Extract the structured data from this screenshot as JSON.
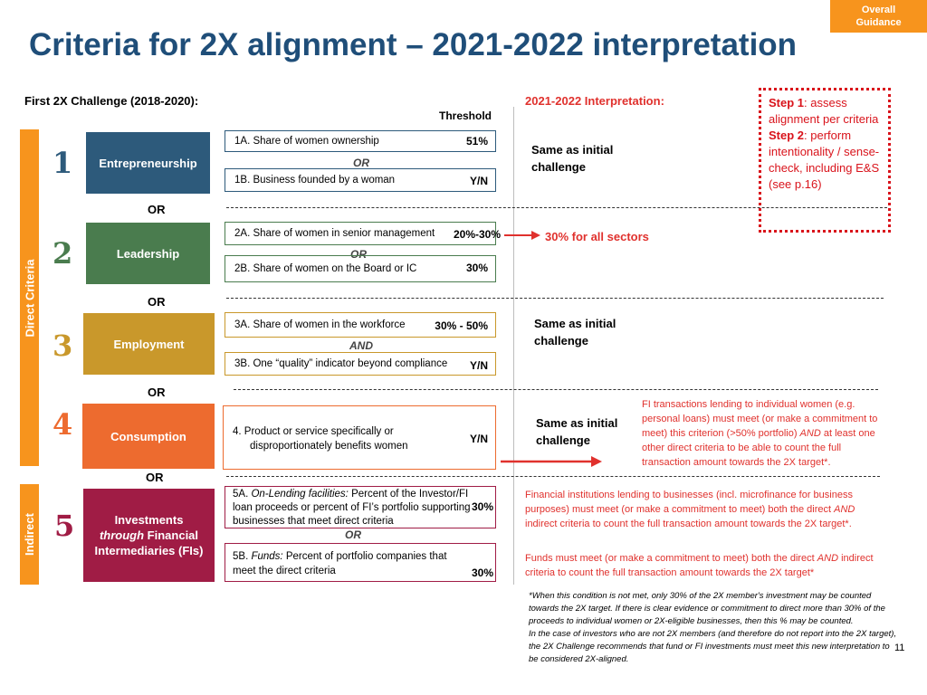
{
  "tag": {
    "line1": "Overall",
    "line2": "Guidance"
  },
  "title": "Criteria for 2X alignment – 2021-2022 interpretation",
  "headers": {
    "left": "First 2X Challenge (2018-2020):",
    "threshold": "Threshold",
    "right": "2021-2022 Interpretation:"
  },
  "sidebar": {
    "direct": "Direct Criteria",
    "indirect": "Indirect"
  },
  "rows": [
    {
      "num": "1",
      "category": "Entrepreneurship",
      "a": {
        "label": "1A. Share of women ownership",
        "value": "51%"
      },
      "join": "OR",
      "b": {
        "label": "1B. Business founded by a woman",
        "value": "Y/N"
      }
    },
    {
      "num": "2",
      "category": "Leadership",
      "a": {
        "label": "2A. Share of women in senior management",
        "value": "20%-30%"
      },
      "join": "OR",
      "b": {
        "label": "2B. Share of women on the Board or IC",
        "value": "30%"
      }
    },
    {
      "num": "3",
      "category": "Employment",
      "a": {
        "label": "3A. Share of women in the  workforce",
        "value": "30% - 50%"
      },
      "join": "AND",
      "b": {
        "label": "3B. One “quality” indicator beyond compliance",
        "value": "Y/N"
      }
    },
    {
      "num": "4",
      "category": "Consumption",
      "a": {
        "label_line1": "4. Product or service specifically or",
        "label_line2": "disproportionately benefits women",
        "value": "Y/N"
      }
    },
    {
      "num": "5",
      "category_line1": "Investments",
      "category_line2_italic": "through",
      "category_line2_rest": " Financial",
      "category_line3": "Intermediaries (FIs)",
      "a": {
        "prefix": "5A. ",
        "italic": "On-Lending facilities:",
        "rest": " Percent of the Investor/FI loan proceeds or percent of FI’s portfolio supporting businesses that meet direct criteria",
        "value": "30%"
      },
      "join": "OR",
      "b": {
        "prefix": "5B. ",
        "italic": "Funds:",
        "rest": " Percent of portfolio companies that meet the direct criteria",
        "value": "30%"
      }
    }
  ],
  "between_or": "OR",
  "interpretation": {
    "same_line1": "Same as initial",
    "same_line2": "challenge",
    "leadership": "30% for all sectors",
    "consumption": {
      "before_italic": "FI transactions lending to individual women (e.g. personal loans) must meet (or make a commitment to meet) this criterion (>50% portfolio) ",
      "italic": "AND",
      "after_italic": " at least one other direct criteria to be able to count the full transaction amount towards the 2X target*."
    },
    "onlending": {
      "before_italic": "Financial institutions lending to businesses (incl. microfinance for business purposes) must meet (or make a commitment to meet) both the direct ",
      "italic": "AND",
      "after_italic": " indirect criteria to count the full transaction amount towards the 2X target*."
    },
    "funds": {
      "before_italic": "Funds must meet (or make a commitment to meet) both the direct ",
      "italic": "AND",
      "after_italic": " indirect criteria to count the full transaction amount towards the 2X target*"
    }
  },
  "footnote": {
    "p1": "*When this condition is not met, only 30% of the 2X member's investment may be counted towards the 2X target. If there is clear evidence or commitment to direct more than 30% of the proceeds to individual women or 2X-eligible businesses, then this % may be counted.",
    "p2": "In the case of investors who are not 2X members (and therefore do not report into the 2X target), the 2X Challenge recommends that fund or FI investments must meet this new interpretation to be considered 2X-aligned."
  },
  "steps": {
    "step1_label": "Step 1",
    "step1_text": ": assess alignment per criteria",
    "step2_label": "Step 2",
    "step2_text": ": perform intentionality / sense-check, including E&S (see p.16)"
  },
  "page_number": "11",
  "colors": {
    "title": "#1f4e79",
    "entrepreneurship": "#2d5a7b",
    "leadership": "#4a7c4e",
    "employment": "#c9982b",
    "consumption": "#ed6b2f",
    "investments": "#a01c45",
    "orange": "#f7941d",
    "red": "#e0312d"
  }
}
